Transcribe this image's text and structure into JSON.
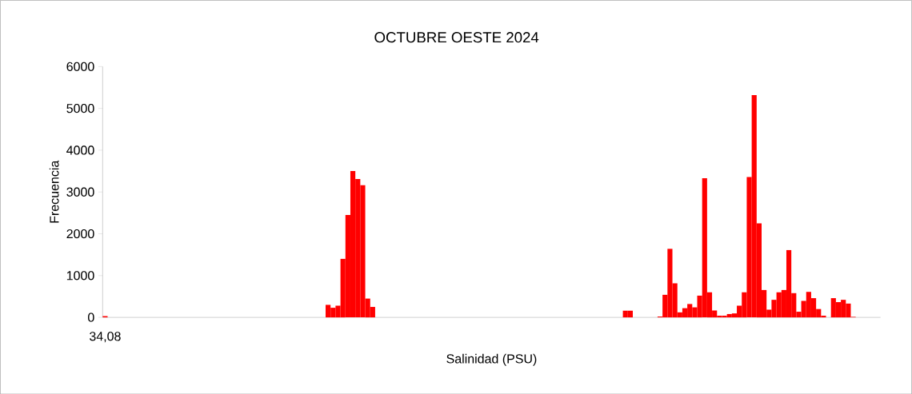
{
  "chart_data": {
    "type": "bar",
    "title": "OCTUBRE OESTE 2024",
    "xlabel": "Salinidad (PSU)",
    "ylabel": "Frecuencia",
    "categories": [
      "34,08",
      null,
      null,
      null,
      null,
      null,
      null,
      null,
      null,
      null,
      null,
      null,
      null,
      null,
      null,
      null,
      null,
      null,
      null,
      null,
      null,
      null,
      null,
      null,
      null,
      null,
      null,
      null,
      null,
      null,
      null,
      null,
      null,
      null,
      null,
      null,
      null,
      null,
      null,
      null,
      null,
      null,
      null,
      null,
      null,
      null,
      null,
      null,
      null,
      null,
      null,
      null,
      null,
      null,
      null,
      null,
      null,
      null,
      null,
      null,
      null,
      null,
      null,
      null,
      null,
      null,
      null,
      null,
      null,
      null,
      null,
      null,
      null,
      null,
      null,
      null,
      null,
      null,
      null,
      null,
      null,
      null,
      null,
      null,
      null,
      null,
      null,
      null,
      null,
      null,
      null,
      null,
      null,
      null,
      null,
      null,
      null,
      null,
      null,
      null,
      null,
      null,
      null,
      null,
      null,
      null,
      null,
      null,
      null,
      null,
      null,
      null,
      null,
      null,
      null,
      null,
      null,
      null,
      null,
      null,
      null,
      null,
      null,
      null,
      null,
      null,
      null,
      null,
      null,
      null,
      null,
      null,
      null,
      null,
      null,
      null,
      null,
      null,
      null,
      null,
      null,
      null,
      null,
      null,
      null,
      null,
      null,
      null,
      null,
      null,
      null,
      null,
      null,
      null,
      null,
      null,
      null
    ],
    "values": [
      30,
      0,
      0,
      0,
      0,
      0,
      0,
      0,
      0,
      0,
      0,
      0,
      0,
      0,
      0,
      0,
      0,
      0,
      0,
      0,
      0,
      0,
      0,
      0,
      0,
      0,
      0,
      0,
      0,
      0,
      0,
      0,
      0,
      0,
      0,
      0,
      0,
      0,
      0,
      0,
      0,
      0,
      0,
      0,
      0,
      300,
      230,
      280,
      1400,
      2450,
      3500,
      3310,
      3160,
      450,
      250,
      0,
      0,
      0,
      0,
      0,
      0,
      0,
      0,
      0,
      0,
      0,
      0,
      0,
      0,
      0,
      0,
      0,
      0,
      0,
      0,
      0,
      0,
      0,
      0,
      0,
      0,
      0,
      0,
      0,
      0,
      0,
      0,
      0,
      0,
      0,
      0,
      0,
      0,
      0,
      0,
      0,
      0,
      0,
      0,
      0,
      0,
      0,
      0,
      0,
      0,
      160,
      160,
      0,
      0,
      0,
      0,
      0,
      20,
      540,
      1640,
      815,
      120,
      220,
      320,
      240,
      520,
      3330,
      600,
      165,
      40,
      40,
      80,
      95,
      280,
      600,
      3360,
      5320,
      2250,
      655,
      185,
      420,
      600,
      655,
      1610,
      580,
      135,
      395,
      610,
      460,
      200,
      40,
      0,
      460,
      365,
      420,
      330,
      12,
      0,
      0,
      0,
      0,
      0
    ],
    "color": "#ff0000",
    "ylim": [
      0,
      6000
    ],
    "yticks": [
      0,
      1000,
      2000,
      3000,
      4000,
      5000,
      6000
    ],
    "grid": false
  }
}
